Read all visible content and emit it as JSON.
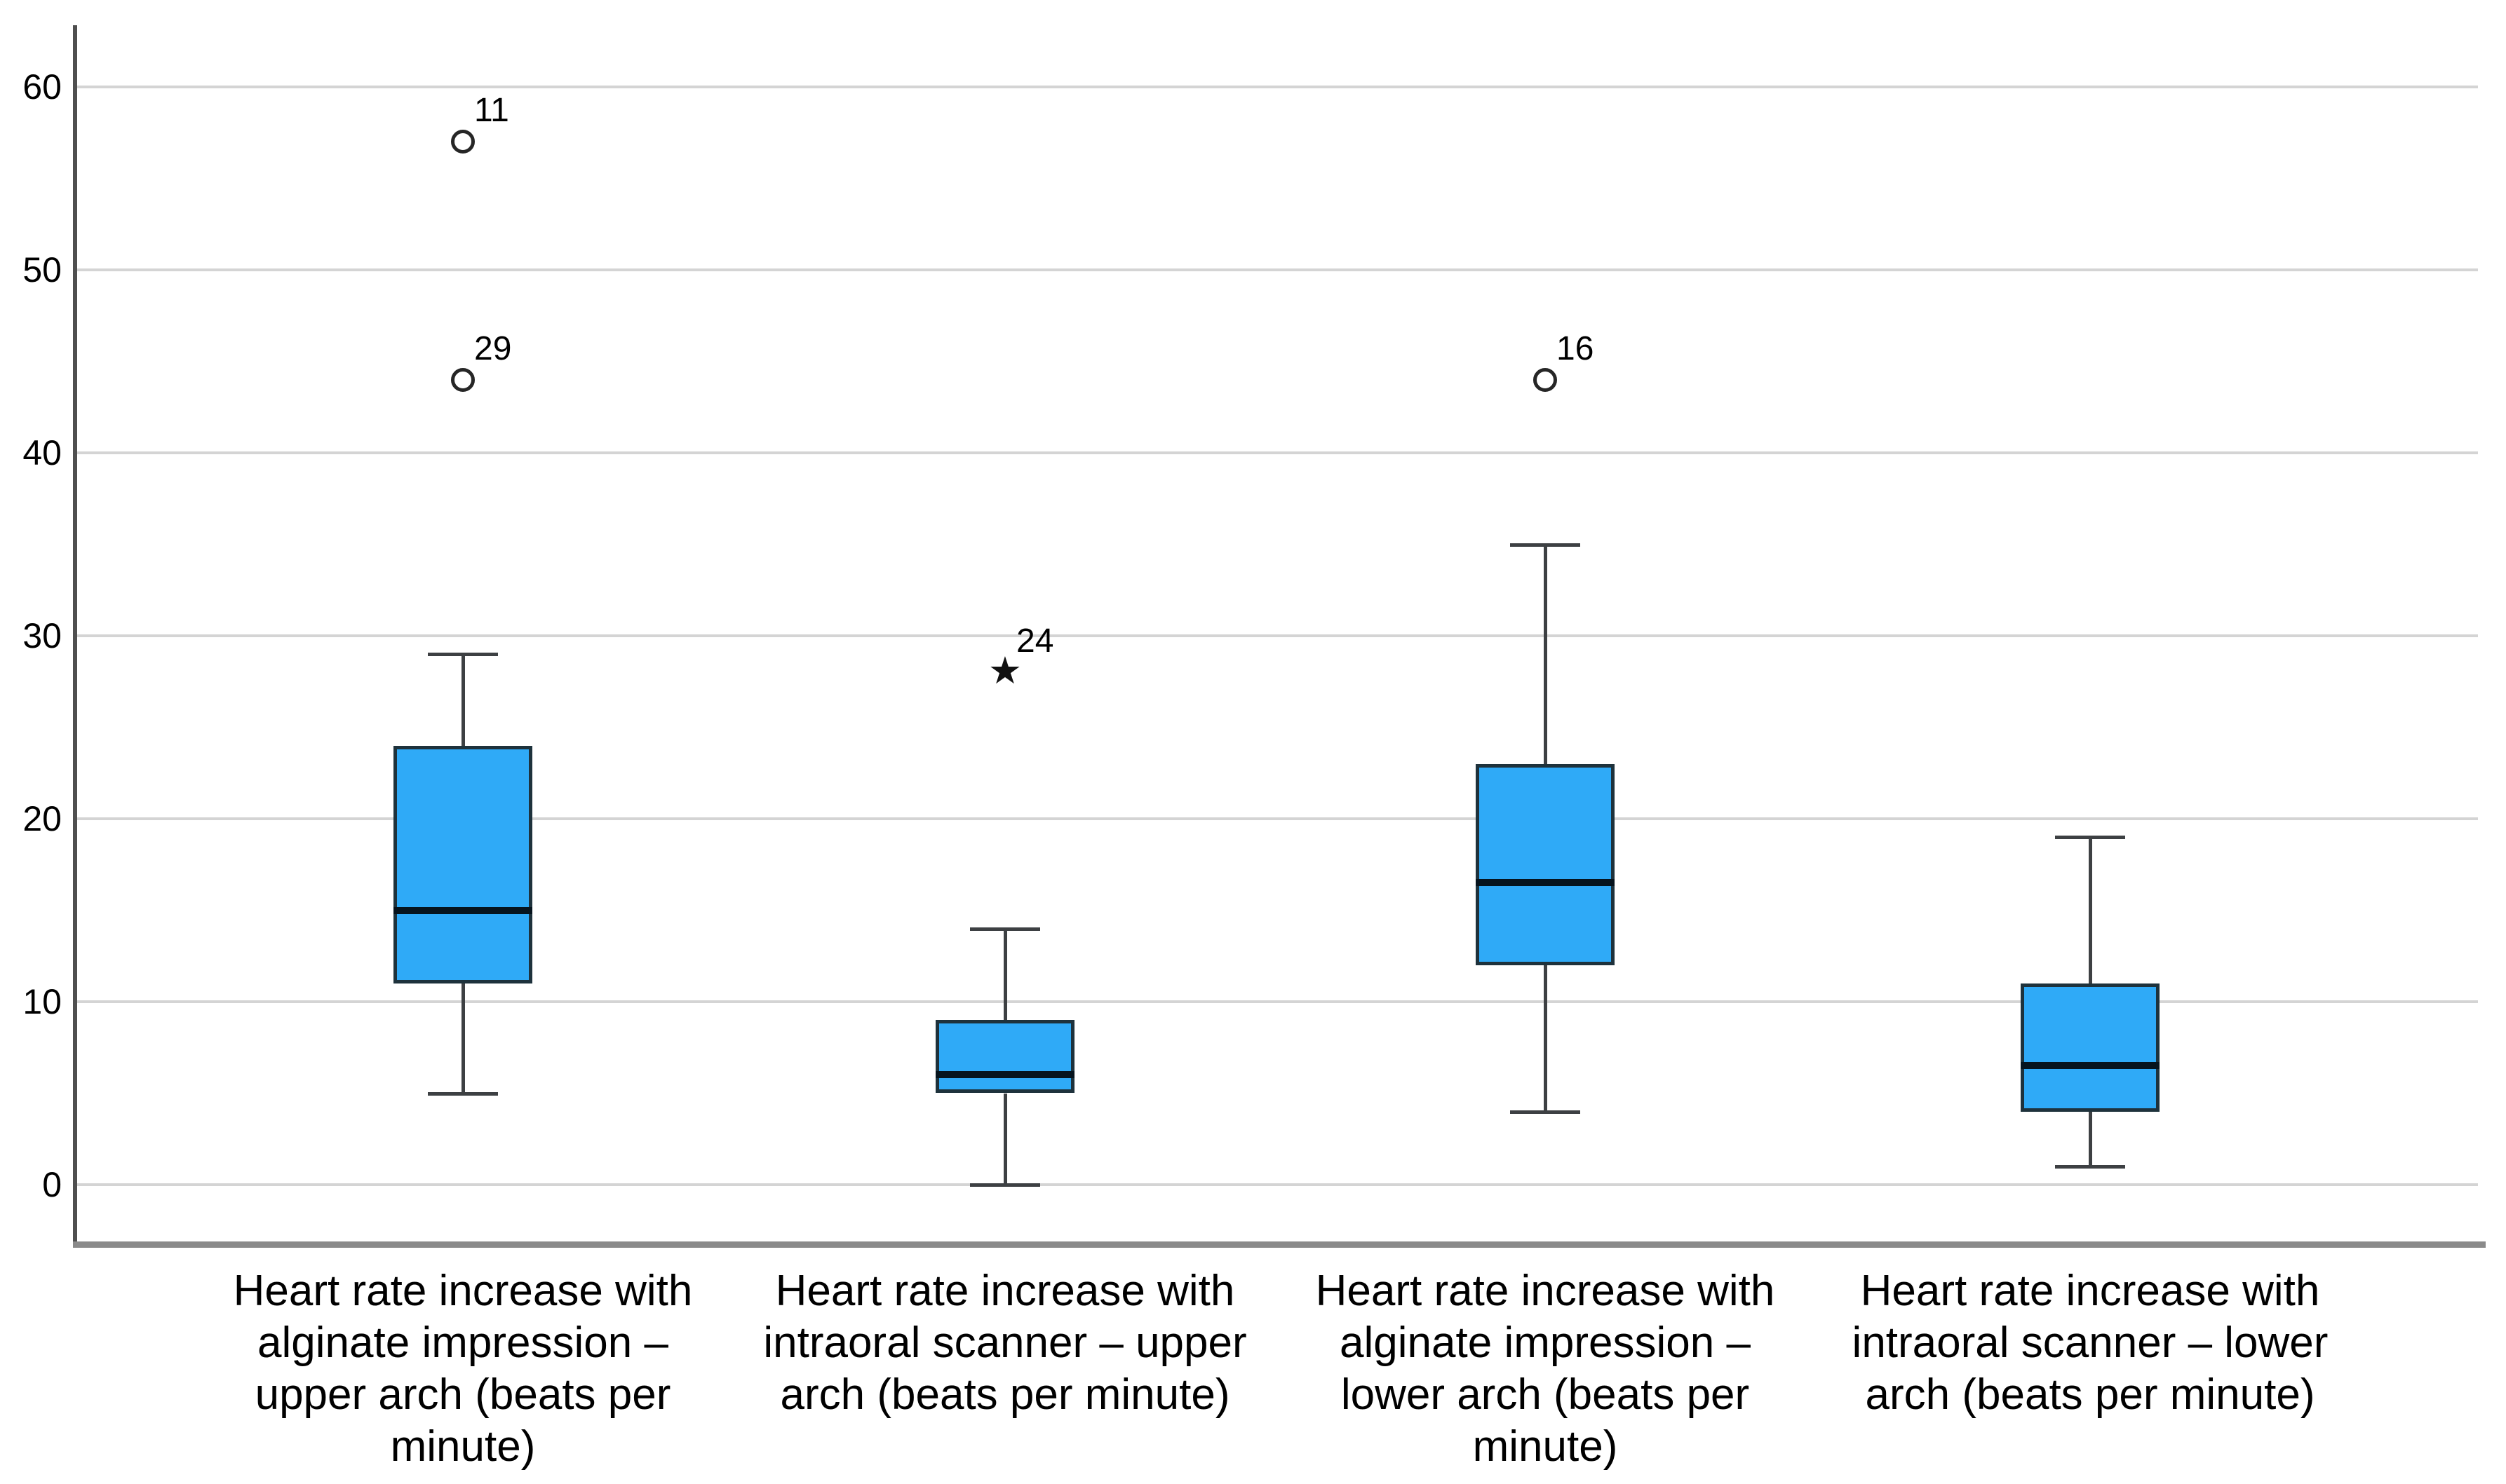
{
  "chart_data": {
    "type": "boxplot",
    "title": "",
    "xlabel": "",
    "ylabel": "",
    "grid": "horizontal",
    "legend": "none",
    "y_axis": {
      "ticks": [
        0,
        10,
        20,
        30,
        40,
        50,
        60
      ],
      "min": -3,
      "max": 63
    },
    "colors": {
      "box_fill": "#2faaf7",
      "box_border": "#1e323c",
      "median": "#06141e",
      "whisker": "#3d4043",
      "gridline": "#d4d4d4",
      "y_axis_line": "#4f4f4f",
      "x_axis_line": "#8a8a8a",
      "text": "#000000"
    },
    "series": [
      {
        "category": "Heart rate increase with alginate impression – upper arch (beats per minute)",
        "label_lines": [
          "Heart rate increase with",
          "alginate impression –",
          "upper arch (beats per",
          "minute)"
        ],
        "whisker_low": 5,
        "q1": 11,
        "median": 15,
        "q3": 24,
        "whisker_high": 29,
        "outliers": [
          {
            "value": 57,
            "label": "11",
            "marker": "circle"
          },
          {
            "value": 44,
            "label": "29",
            "marker": "circle"
          }
        ]
      },
      {
        "category": "Heart rate increase with intraoral scanner – upper arch (beats per minute)",
        "label_lines": [
          "Heart rate increase with",
          "intraoral scanner – upper",
          "arch (beats per minute)"
        ],
        "whisker_low": 0,
        "q1": 5,
        "median": 6,
        "q3": 9,
        "whisker_high": 14,
        "outliers": [
          {
            "value": 28,
            "label": "24",
            "marker": "star"
          }
        ]
      },
      {
        "category": "Heart rate increase with alginate impression – lower arch (beats per minute)",
        "label_lines": [
          "Heart rate increase with",
          "alginate impression –",
          "lower arch (beats per",
          "minute)"
        ],
        "whisker_low": 4,
        "q1": 12,
        "median": 16.5,
        "q3": 23,
        "whisker_high": 35,
        "outliers": [
          {
            "value": 44,
            "label": "16",
            "marker": "circle"
          }
        ]
      },
      {
        "category": "Heart rate increase with intraoral scanner – lower arch (beats per minute)",
        "label_lines": [
          "Heart rate increase with",
          "intraoral scanner – lower",
          "arch (beats per minute)"
        ],
        "whisker_low": 1,
        "q1": 4,
        "median": 6.5,
        "q3": 11,
        "whisker_high": 19,
        "outliers": []
      }
    ]
  }
}
